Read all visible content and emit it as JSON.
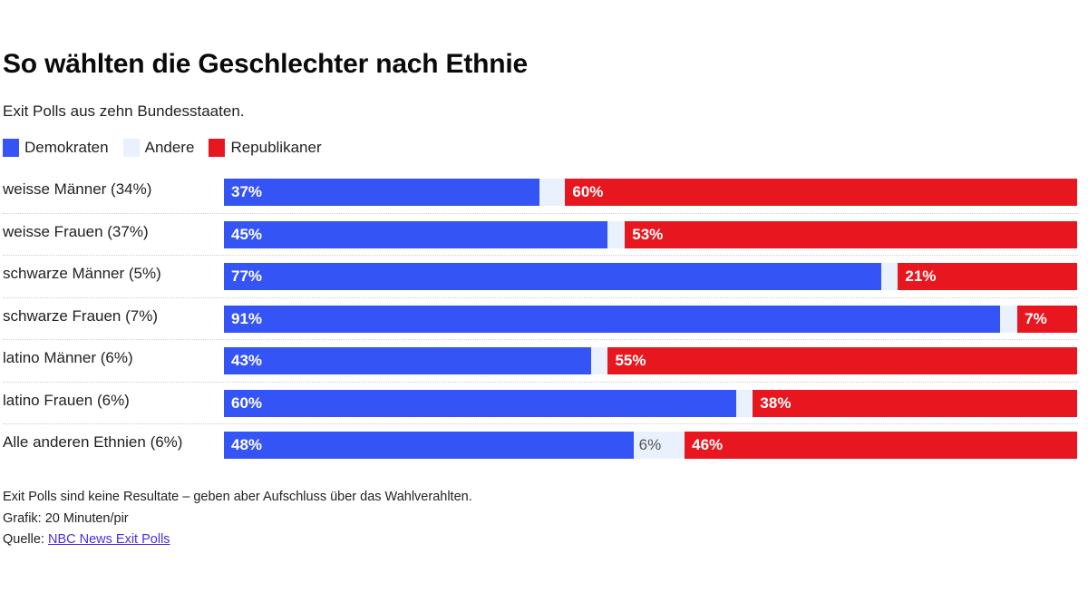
{
  "chart_data": {
    "type": "bar",
    "orientation": "horizontal",
    "stacked": true,
    "title": "So wählten die Geschlechter nach Ethnie",
    "subtitle": "Exit Polls aus zehn Bundesstaaten.",
    "xlabel": "",
    "ylabel": "",
    "xlim": [
      0,
      100
    ],
    "grid": false,
    "legend_position": "top-left",
    "legend": [
      {
        "key": "dem",
        "label": "Demokraten",
        "color": "#3554f5"
      },
      {
        "key": "other",
        "label": "Andere",
        "color": "#e9f1fd"
      },
      {
        "key": "rep",
        "label": "Republikaner",
        "color": "#e8171f"
      }
    ],
    "categories": [
      "weisse Männer (34%)",
      "weisse Frauen (37%)",
      "schwarze Männer (5%)",
      "schwarze Frauen (7%)",
      "latino Männer (6%)",
      "latino Frauen (6%)",
      "Alle anderen Ethnien (6%)"
    ],
    "series": [
      {
        "name": "Demokraten",
        "key": "dem",
        "values": [
          37,
          45,
          77,
          91,
          43,
          60,
          48
        ],
        "labels": [
          "37%",
          "45%",
          "77%",
          "91%",
          "43%",
          "60%",
          "48%"
        ]
      },
      {
        "name": "Andere",
        "key": "other",
        "values": [
          3,
          2,
          2,
          2,
          2,
          2,
          6
        ],
        "labels": [
          "",
          "",
          "",
          "",
          "",
          "",
          "6%"
        ]
      },
      {
        "name": "Republikaner",
        "key": "rep",
        "values": [
          60,
          53,
          21,
          7,
          55,
          38,
          46
        ],
        "labels": [
          "60%",
          "53%",
          "21%",
          "7%",
          "55%",
          "38%",
          "46%"
        ]
      }
    ]
  },
  "footer": {
    "note": "Exit Polls sind keine Resultate – geben aber Aufschluss über das Wahlverahlten.",
    "credit": "Grafik: 20 Minuten/pir",
    "source_prefix": "Quelle: ",
    "source_link": "NBC News Exit Polls"
  }
}
